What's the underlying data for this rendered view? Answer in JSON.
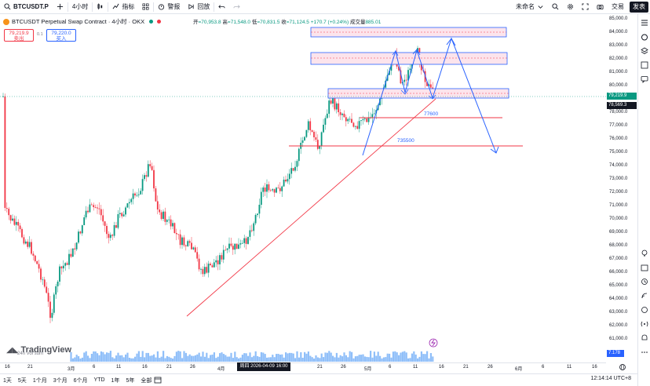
{
  "topbar": {
    "symbol": "BTCUSDT.P",
    "interval": "4小时",
    "indicators": "指标",
    "alert": "警报",
    "replay": "回放",
    "layout_name": "未命名",
    "trade": "交易",
    "publish": "发表"
  },
  "legend": {
    "title": "BTCUSDT Perpetual Swap Contract · 4小时 · OKX",
    "ohlc": {
      "open_label": "开",
      "open": "=70,953.8",
      "high_label": "高",
      "high": "=71,548.0",
      "low_label": "低",
      "low": "=70,831.5",
      "close_label": "收",
      "close": "=71,124.5",
      "change": "+170.7 (+0.24%)",
      "volume_label": "成交量",
      "volume": "885.01"
    }
  },
  "trade_buttons": {
    "sell_price": "79,219.9",
    "sell_label": "卖出",
    "spread": "0.1",
    "buy_price": "79,220.0",
    "buy_label": "买入"
  },
  "price_axis": {
    "labels": [
      "85,000.0",
      "84,000.0",
      "83,000.0",
      "82,000.0",
      "81,000.0",
      "80,000.0",
      "78,000.0",
      "77,000.0",
      "76,000.0",
      "75,000.0",
      "74,000.0",
      "73,000.0",
      "72,000.0",
      "71,000.0",
      "70,000.0",
      "69,000.0",
      "68,000.0",
      "67,000.0",
      "66,000.0",
      "65,000.0",
      "64,000.0",
      "63,000.0",
      "62,000.0",
      "61,000.0"
    ],
    "current_price": "79,219.9",
    "crosshair_price": "78,569.3",
    "volume_value": "7.178"
  },
  "annotations": {
    "level_1": "77600",
    "level_2": "735500"
  },
  "time_axis": {
    "labels": [
      "16",
      "21",
      "3月",
      "6",
      "11",
      "16",
      "21",
      "26",
      "4月",
      "21",
      "26",
      "5月",
      "6",
      "11",
      "16",
      "21",
      "26",
      "6月",
      "6",
      "11",
      "16"
    ],
    "crosshair_date": "周四 2026-04-09 16:00"
  },
  "volume_label": "24h Vol sum",
  "logo": "TradingView",
  "bottombar": {
    "ranges": [
      "1天",
      "5天",
      "1个月",
      "3个月",
      "6个月",
      "YTD",
      "1年",
      "5年",
      "全部"
    ],
    "clock": "12:14:14 UTC+8"
  },
  "colors": {
    "up": "#089981",
    "down": "#f23645",
    "drawing_blue": "#2962ff",
    "zone_pink": "#f8bbd0",
    "trendline_red": "#f23645"
  }
}
